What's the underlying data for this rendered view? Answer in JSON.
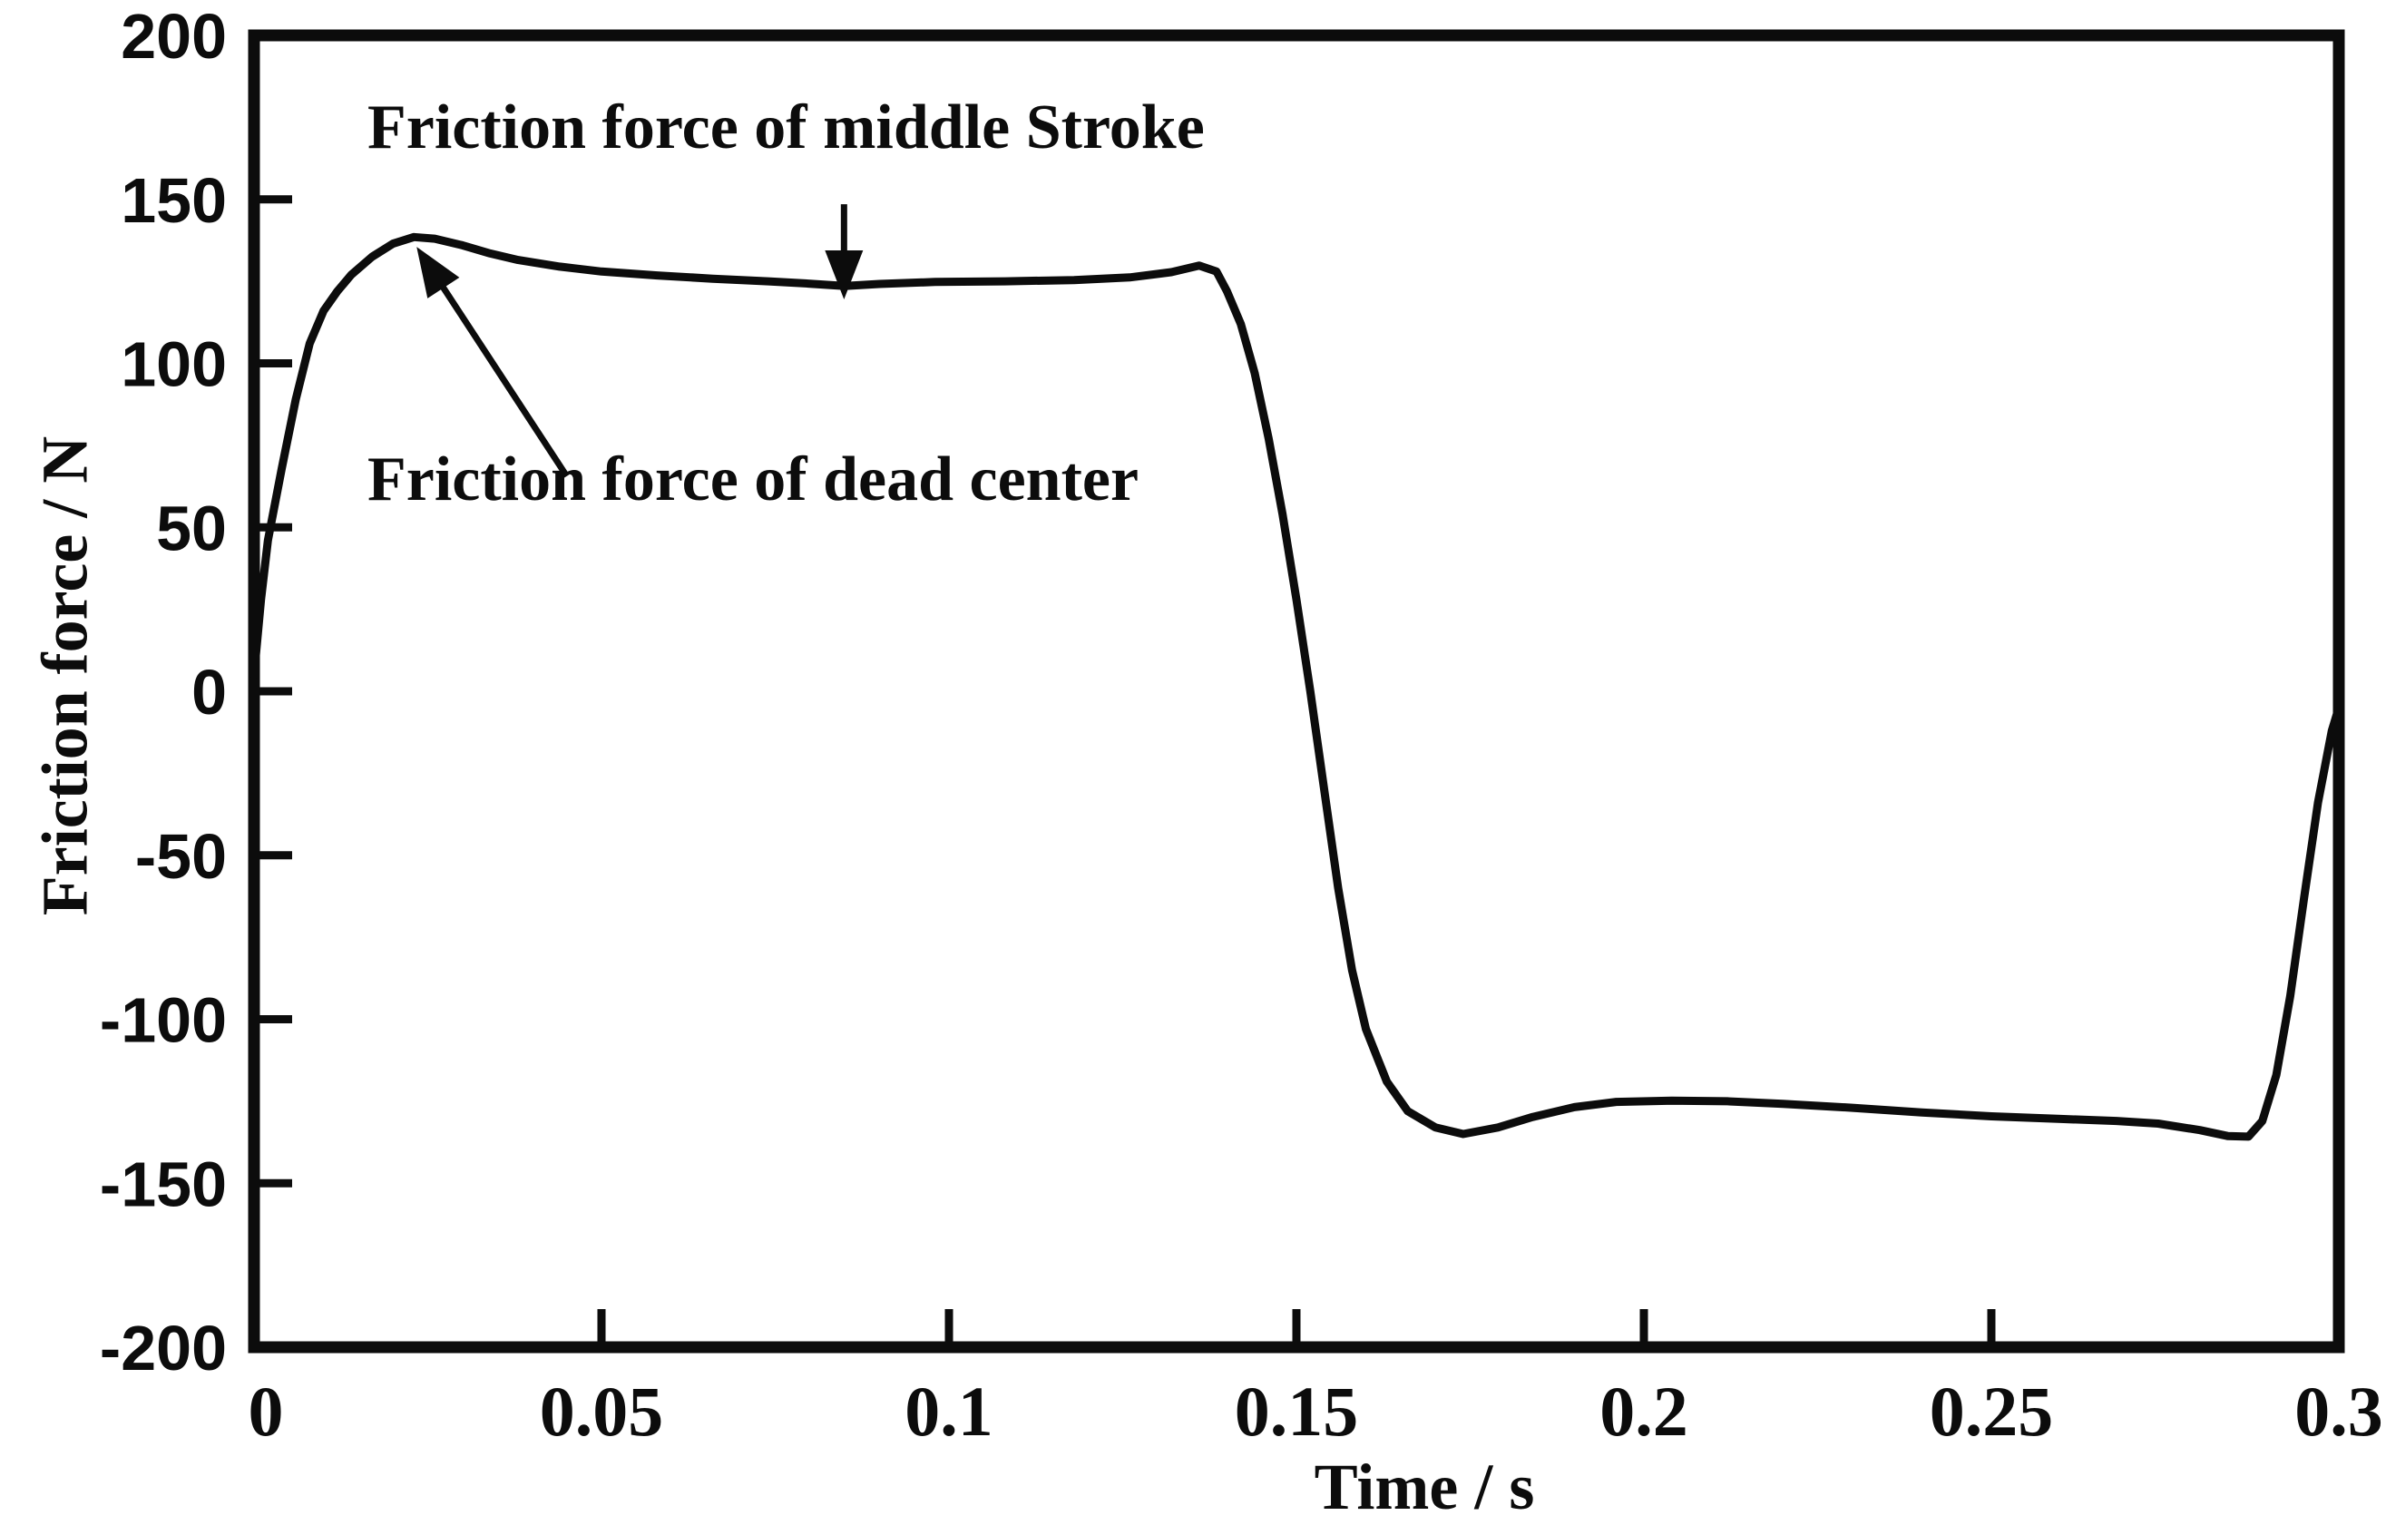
{
  "chart_data": {
    "type": "line",
    "title": "",
    "xlabel": "Time / s",
    "ylabel": "Friction force / N",
    "xlim": [
      0,
      0.3
    ],
    "ylim": [
      -200,
      200
    ],
    "grid": false,
    "legend": "none",
    "line_color": "#0c0c0c",
    "background": "#ffffff",
    "x_ticks": [
      0,
      0.05,
      0.1,
      0.15,
      0.2,
      0.25,
      0.3
    ],
    "x_tick_labels": [
      "0",
      "0.05",
      "0.1",
      "0.15",
      "0.2",
      "0.25",
      "0.3"
    ],
    "y_ticks": [
      200,
      150,
      100,
      50,
      0,
      -50,
      -100,
      -150,
      -200
    ],
    "y_tick_labels": [
      "200",
      "150",
      "100",
      "50",
      "0",
      "-50",
      "-100",
      "-150",
      "-200"
    ],
    "series": [
      {
        "name": "friction-force",
        "points": [
          [
            0.0,
            5
          ],
          [
            0.001,
            28
          ],
          [
            0.002,
            46
          ],
          [
            0.004,
            68
          ],
          [
            0.006,
            89
          ],
          [
            0.008,
            106
          ],
          [
            0.01,
            116
          ],
          [
            0.012,
            122
          ],
          [
            0.014,
            127
          ],
          [
            0.017,
            132.5
          ],
          [
            0.02,
            136.5
          ],
          [
            0.023,
            138.5
          ],
          [
            0.026,
            138
          ],
          [
            0.03,
            136
          ],
          [
            0.034,
            133.5
          ],
          [
            0.038,
            131.5
          ],
          [
            0.044,
            129.5
          ],
          [
            0.05,
            128
          ],
          [
            0.058,
            126.8
          ],
          [
            0.066,
            125.8
          ],
          [
            0.074,
            125
          ],
          [
            0.08,
            124.3
          ],
          [
            0.085,
            123.6
          ],
          [
            0.09,
            124.2
          ],
          [
            0.098,
            124.8
          ],
          [
            0.108,
            125
          ],
          [
            0.118,
            125.4
          ],
          [
            0.126,
            126.2
          ],
          [
            0.132,
            127.8
          ],
          [
            0.136,
            129.8
          ],
          [
            0.1385,
            128
          ],
          [
            0.14,
            122
          ],
          [
            0.142,
            112
          ],
          [
            0.144,
            97
          ],
          [
            0.146,
            77
          ],
          [
            0.148,
            54
          ],
          [
            0.15,
            28
          ],
          [
            0.152,
            0
          ],
          [
            0.154,
            -30
          ],
          [
            0.156,
            -60
          ],
          [
            0.158,
            -85
          ],
          [
            0.16,
            -103
          ],
          [
            0.163,
            -119
          ],
          [
            0.166,
            -128
          ],
          [
            0.17,
            -133
          ],
          [
            0.174,
            -135
          ],
          [
            0.179,
            -133
          ],
          [
            0.184,
            -129.8
          ],
          [
            0.19,
            -126.8
          ],
          [
            0.196,
            -125.2
          ],
          [
            0.204,
            -124.8
          ],
          [
            0.212,
            -125
          ],
          [
            0.22,
            -125.8
          ],
          [
            0.23,
            -127
          ],
          [
            0.24,
            -128.4
          ],
          [
            0.25,
            -129.6
          ],
          [
            0.26,
            -130.4
          ],
          [
            0.268,
            -131
          ],
          [
            0.274,
            -131.8
          ],
          [
            0.28,
            -133.8
          ],
          [
            0.284,
            -135.6
          ],
          [
            0.287,
            -135.8
          ],
          [
            0.289,
            -131
          ],
          [
            0.291,
            -117
          ],
          [
            0.293,
            -93
          ],
          [
            0.295,
            -63
          ],
          [
            0.297,
            -34
          ],
          [
            0.299,
            -12
          ],
          [
            0.3,
            -5
          ]
        ]
      }
    ],
    "annotations": [
      {
        "id": "middle-stroke",
        "label": "Friction force of middle Stroke",
        "arrow_from": [
          0.0849,
          148.5
        ],
        "arrow_to": [
          0.0849,
          119.5
        ]
      },
      {
        "id": "dead-center",
        "label": "Friction force of dead center",
        "arrow_from": [
          0.045,
          65.6
        ],
        "arrow_to": [
          0.0234,
          135.5
        ]
      }
    ]
  }
}
